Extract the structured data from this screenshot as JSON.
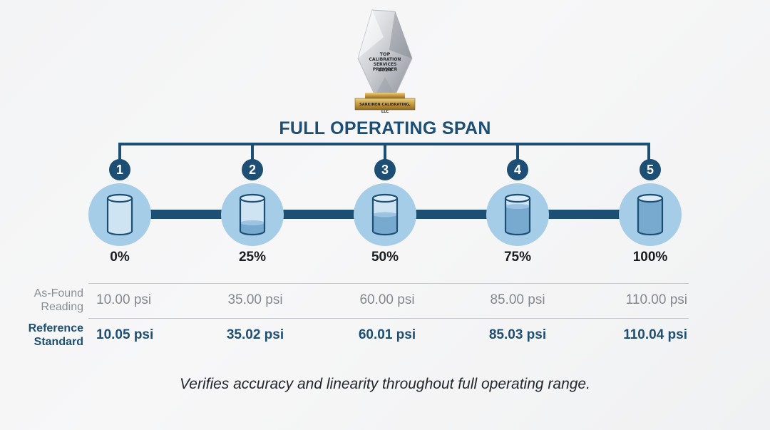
{
  "award": {
    "line1": "TOP",
    "line2": "CALIBRATION",
    "line3": "SERVICES PROVIDER",
    "line4": "2024",
    "plate": "SARKINEN CALIBRATING, LLC"
  },
  "title": "FULL OPERATING SPAN",
  "steps": [
    {
      "number": "1",
      "percent": "0%",
      "fill": 0.0
    },
    {
      "number": "2",
      "percent": "25%",
      "fill": 0.25
    },
    {
      "number": "3",
      "percent": "50%",
      "fill": 0.5
    },
    {
      "number": "4",
      "percent": "75%",
      "fill": 0.75
    },
    {
      "number": "5",
      "percent": "100%",
      "fill": 1.0
    }
  ],
  "rows": {
    "as_found": {
      "label_line1": "As-Found",
      "label_line2": "Reading",
      "values": [
        "10.00 psi",
        "35.00 psi",
        "60.00 psi",
        "85.00 psi",
        "110.00 psi"
      ]
    },
    "reference": {
      "label_line1": "Reference",
      "label_line2": "Standard",
      "values": [
        "10.05 psi",
        "35.02 psi",
        "60.01 psi",
        "85.03 psi",
        "110.04 psi"
      ]
    }
  },
  "caption": "Verifies accuracy and linearity throughout full operating range.",
  "colors": {
    "primary": "#1d4e73",
    "circle": "#a6cde8",
    "liquid": "#78a9cf",
    "muted": "#85898e"
  },
  "icons": {
    "cylinder": "cylinder-icon",
    "award": "award-trophy-icon"
  }
}
